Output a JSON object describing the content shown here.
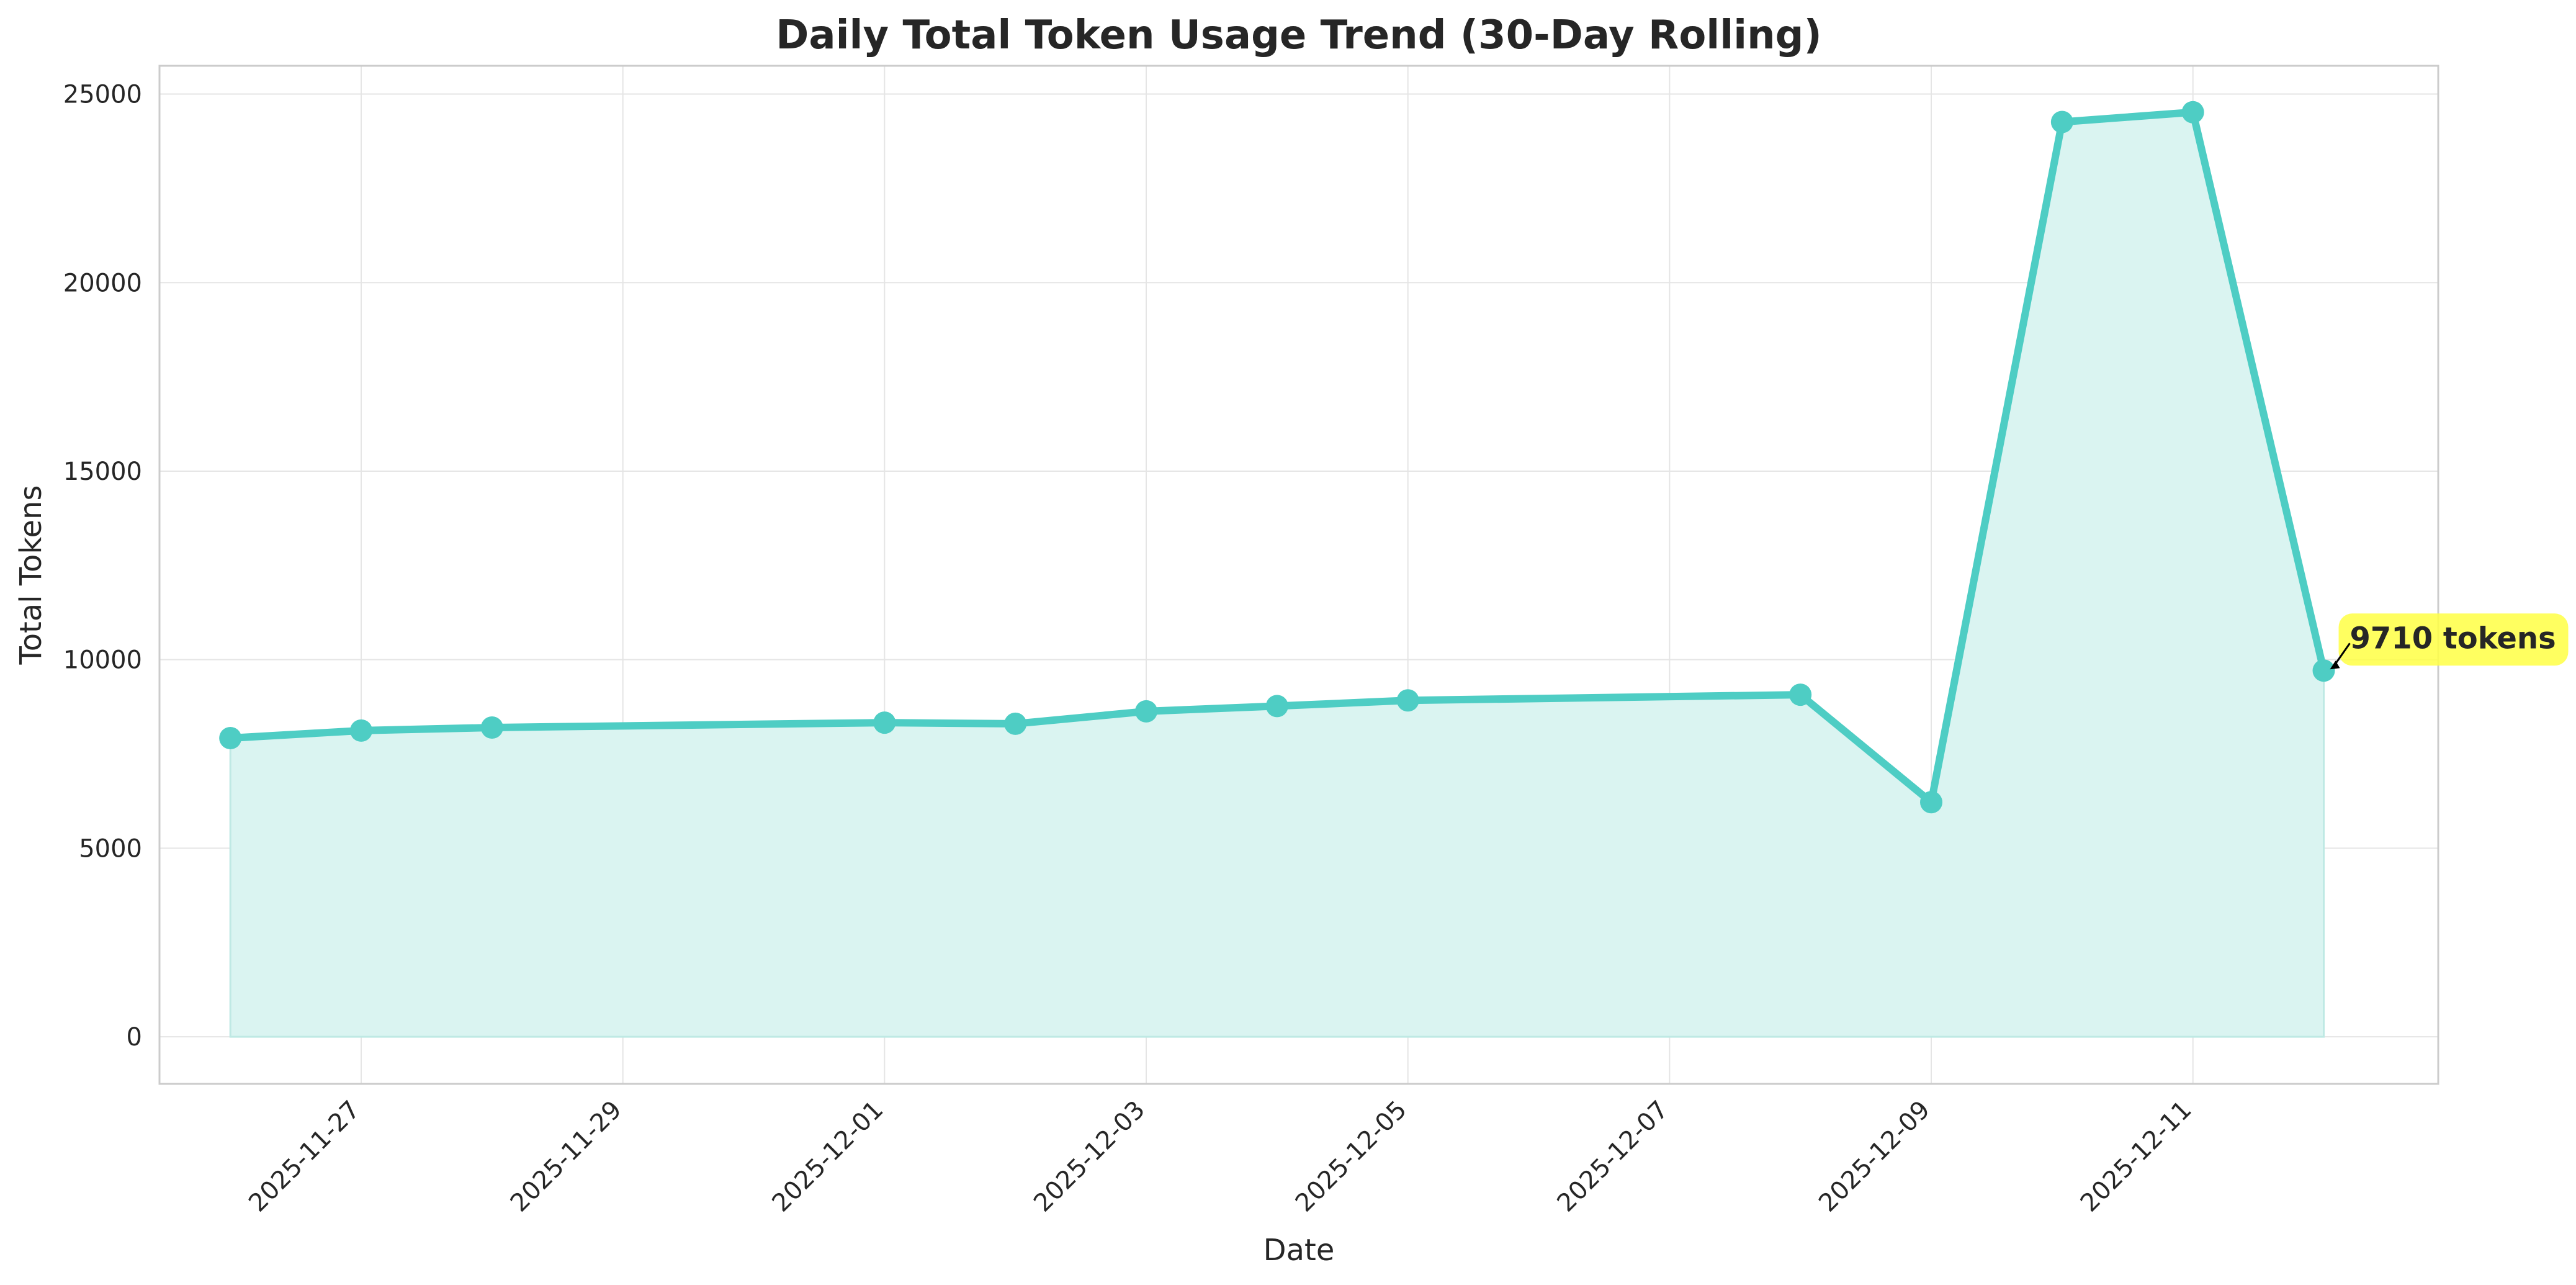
{
  "chart_data": {
    "type": "line",
    "title": "Daily Total Token Usage Trend (30-Day Rolling)",
    "xlabel": "Date",
    "ylabel": "Total Tokens",
    "xlim": [
      "2025-11-25T11:00",
      "2025-12-12T21:00"
    ],
    "ylim": [
      -1250,
      25750
    ],
    "grid": true,
    "fill_under": true,
    "colors": {
      "line": "#4ECDC4",
      "fill": "#DAF4F1",
      "annotation_box": "#FFFF44"
    },
    "x_ticks": [
      "2025-11-27",
      "2025-11-29",
      "2025-12-01",
      "2025-12-03",
      "2025-12-05",
      "2025-12-07",
      "2025-12-09",
      "2025-12-11"
    ],
    "y_ticks": [
      0,
      5000,
      10000,
      15000,
      20000,
      25000
    ],
    "y_tick_labels": [
      "0",
      "5000",
      "10000",
      "15000",
      "20000",
      "25000"
    ],
    "series": [
      {
        "x": [
          "2025-11-26",
          "2025-11-27",
          "2025-11-28",
          "2025-12-01",
          "2025-12-02",
          "2025-12-03",
          "2025-12-04",
          "2025-12-05",
          "2025-12-08",
          "2025-12-09",
          "2025-12-10",
          "2025-12-11",
          "2025-12-12"
        ],
        "values": [
          7920,
          8120,
          8200,
          8330,
          8300,
          8630,
          8770,
          8920,
          9070,
          6220,
          24260,
          24520,
          9710
        ]
      }
    ],
    "annotation": {
      "text": "9710 tokens",
      "x": "2025-12-12",
      "y": 9710
    }
  }
}
